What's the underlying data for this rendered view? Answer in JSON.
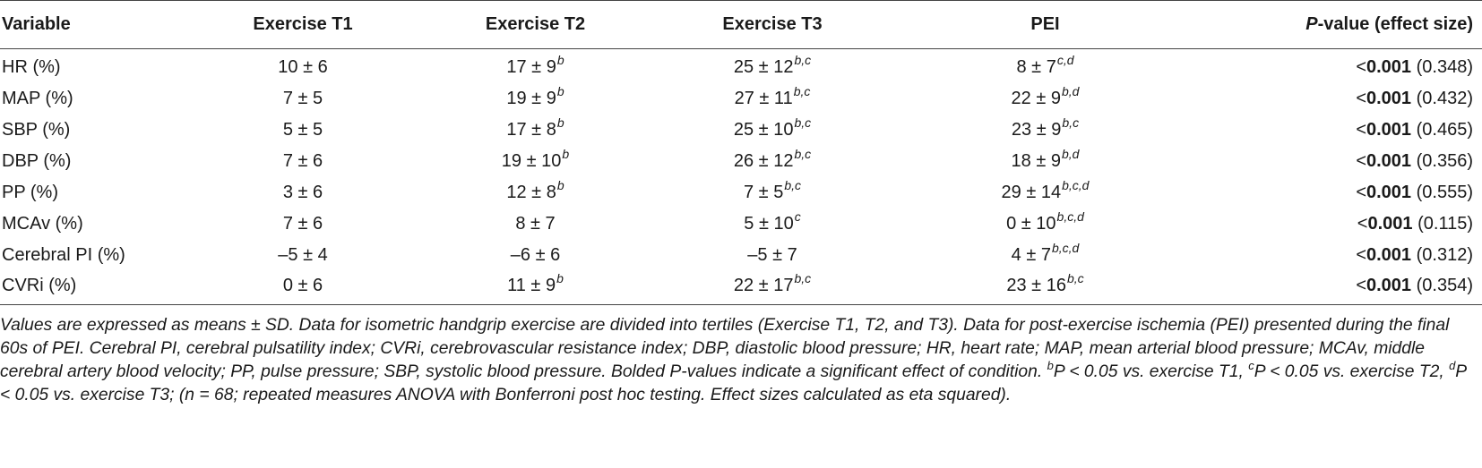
{
  "header": {
    "variable": "Variable",
    "t1": "Exercise T1",
    "t2": "Exercise T2",
    "t3": "Exercise T3",
    "pei": "PEI",
    "p_italic": "P",
    "p_rest": "-value (effect size)"
  },
  "rows": [
    {
      "var": "HR (%)",
      "t1": "10 ± 6",
      "t1_sup": "",
      "t2": "17 ± 9",
      "t2_sup": "b",
      "t3": "25 ± 12",
      "t3_sup": "b,c",
      "pei": "8 ± 7",
      "pei_sup": "c,d",
      "p_lt": "<",
      "p_bold": "0.001",
      "p_eff": " (0.348)"
    },
    {
      "var": "MAP (%)",
      "t1": "7 ± 5",
      "t1_sup": "",
      "t2": "19 ± 9",
      "t2_sup": "b",
      "t3": "27 ± 11",
      "t3_sup": "b,c",
      "pei": "22 ± 9",
      "pei_sup": "b,d",
      "p_lt": "<",
      "p_bold": "0.001",
      "p_eff": " (0.432)"
    },
    {
      "var": "SBP (%)",
      "t1": "5 ± 5",
      "t1_sup": "",
      "t2": "17 ± 8",
      "t2_sup": "b",
      "t3": "25 ± 10",
      "t3_sup": "b,c",
      "pei": "23 ± 9",
      "pei_sup": "b,c",
      "p_lt": "<",
      "p_bold": "0.001",
      "p_eff": " (0.465)"
    },
    {
      "var": "DBP (%)",
      "t1": "7 ± 6",
      "t1_sup": "",
      "t2": "19 ± 10",
      "t2_sup": "b",
      "t3": "26 ± 12",
      "t3_sup": "b,c",
      "pei": "18 ± 9",
      "pei_sup": "b,d",
      "p_lt": "<",
      "p_bold": "0.001",
      "p_eff": " (0.356)"
    },
    {
      "var": "PP (%)",
      "t1": "3 ± 6",
      "t1_sup": "",
      "t2": "12 ± 8",
      "t2_sup": "b",
      "t3": "7 ± 5",
      "t3_sup": "b,c",
      "pei": "29 ± 14",
      "pei_sup": "b,c,d",
      "p_lt": "<",
      "p_bold": "0.001",
      "p_eff": " (0.555)"
    },
    {
      "var": "MCAv (%)",
      "t1": "7 ± 6",
      "t1_sup": "",
      "t2": "8 ± 7",
      "t2_sup": "",
      "t3": "5 ± 10",
      "t3_sup": "c",
      "pei": "0 ± 10",
      "pei_sup": "b,c,d",
      "p_lt": "<",
      "p_bold": "0.001",
      "p_eff": " (0.115)"
    },
    {
      "var": "Cerebral PI (%)",
      "t1": "–5 ± 4",
      "t1_sup": "",
      "t2": "–6 ± 6",
      "t2_sup": "",
      "t3": "–5 ± 7",
      "t3_sup": "",
      "pei": "4 ± 7",
      "pei_sup": "b,c,d",
      "p_lt": "<",
      "p_bold": "0.001",
      "p_eff": " (0.312)"
    },
    {
      "var": "CVRi (%)",
      "t1": "0 ± 6",
      "t1_sup": "",
      "t2": "11 ± 9",
      "t2_sup": "b",
      "t3": "22 ± 17",
      "t3_sup": "b,c",
      "pei": "23 ± 16",
      "pei_sup": "b,c",
      "p_lt": "<",
      "p_bold": "0.001",
      "p_eff": " (0.354)"
    }
  ],
  "footnote": {
    "main": "Values are expressed as means ± SD. Data for isometric handgrip exercise are divided into tertiles (Exercise T1, T2, and T3). Data for post-exercise ischemia (PEI) presented during the final 60s of PEI. Cerebral PI, cerebral pulsatility index; CVRi, cerebrovascular resistance index; DBP, diastolic blood pressure; HR, heart rate; MAP, mean arterial blood pressure; MCAv, middle cerebral artery blood velocity; PP, pulse pressure; SBP, systolic blood pressure. Bolded P-values indicate a significant effect of condition. ",
    "sup_b": "b",
    "text_b": "P < 0.05 vs. exercise T1, ",
    "sup_c": "c",
    "text_c": "P < 0.05 vs. exercise T2, ",
    "sup_d": "d",
    "text_d": "P < 0.05 vs. exercise T3; (",
    "n_label": "n",
    "text_end": " = 68; repeated measures ANOVA with Bonferroni post hoc testing. Effect sizes calculated as eta squared)."
  }
}
